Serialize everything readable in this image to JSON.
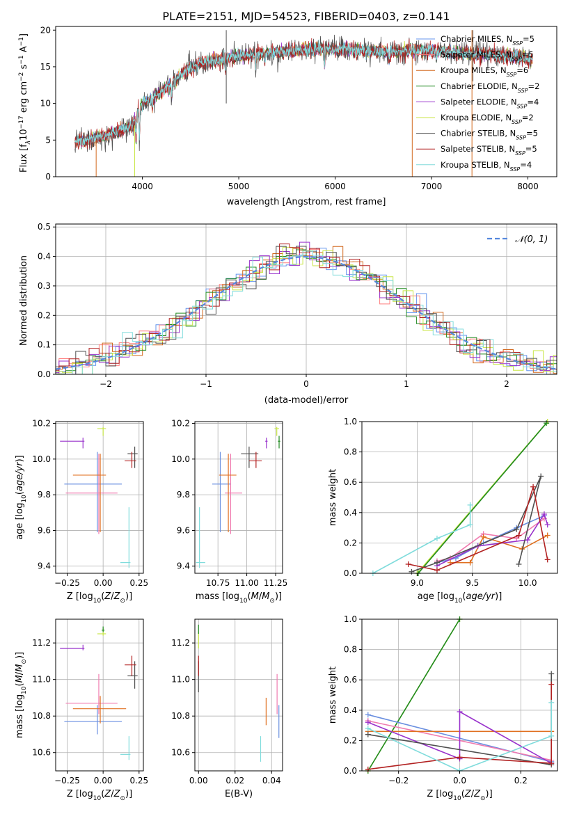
{
  "colors": {
    "chabrier_miles": "#6495ed",
    "salpeter_miles": "#ff7f7f",
    "kroupa_miles": "#d2691e",
    "chabrier_elodie": "#228b22",
    "salpeter_elodie": "#9932cc",
    "kroupa_elodie": "#c8e646",
    "chabrier_stelib": "#505050",
    "salpeter_stelib": "#b22222",
    "kroupa_stelib": "#80dcdc",
    "ms_chabrier_miles": "#6a8fe0",
    "ms_salpeter_miles": "#f07bb0",
    "ms_kroupa_miles": "#e07020",
    "grid": "#b0b0b0",
    "norm": "#5588dd"
  },
  "chart_data": [
    {
      "type": "line",
      "title": "PLATE=2151, MJD=54523, FIBERID=0403, z=0.141",
      "xlabel": "wavelength [Angstrom, rest frame]",
      "ylabel_parts": [
        "Flux [f",
        "λ",
        "10",
        "−17",
        " erg cm",
        "−2",
        " s",
        "−1",
        " A",
        "−1",
        "]"
      ],
      "xlim": [
        3100,
        8300
      ],
      "ylim": [
        0,
        20.5
      ],
      "xticks": [
        "4000",
        "5000",
        "6000",
        "7000",
        "8000"
      ],
      "yticks": [
        "0",
        "5",
        "10",
        "15",
        "20"
      ],
      "legend_position": "top-right",
      "continuum_knots": [
        [
          3300,
          4.8
        ],
        [
          3500,
          5.2
        ],
        [
          3700,
          6.0
        ],
        [
          3900,
          7.0
        ],
        [
          4000,
          10.0
        ],
        [
          4200,
          11.5
        ],
        [
          4400,
          14.0
        ],
        [
          4600,
          15.5
        ],
        [
          4800,
          16.0
        ],
        [
          5000,
          16.5
        ],
        [
          5400,
          17.0
        ],
        [
          5800,
          17.5
        ],
        [
          6200,
          17.3
        ],
        [
          6600,
          17.0
        ],
        [
          7000,
          17.2
        ],
        [
          7400,
          16.8
        ],
        [
          7800,
          16.5
        ],
        [
          8050,
          16.0
        ]
      ],
      "absorption_features": [
        [
          3934,
          3.0
        ],
        [
          3969,
          3.5
        ],
        [
          4102,
          1.5
        ],
        [
          4304,
          2.0
        ],
        [
          4340,
          1.5
        ],
        [
          4861,
          1.2
        ],
        [
          5175,
          2.0
        ],
        [
          5270,
          1.0
        ],
        [
          5890,
          2.5
        ],
        [
          6563,
          1.0
        ],
        [
          7050,
          1.0
        ]
      ],
      "spike_lines": [
        {
          "series": "kroupa_miles",
          "x": 3520,
          "y0": 0,
          "y1": 5
        },
        {
          "series": "kroupa_elodie",
          "x": 3920,
          "y0": 0,
          "y1": 7
        },
        {
          "series": "chabrier_stelib",
          "x": 4870,
          "y0": 10,
          "y1": 20
        },
        {
          "series": "kroupa_miles",
          "x": 6800,
          "y0": 0,
          "y1": 17
        },
        {
          "series": "kroupa_miles",
          "x": 7420,
          "y0": 0,
          "y1": 20
        },
        {
          "series": "chabrier_stelib",
          "x": 7430,
          "y0": 13,
          "y1": 20
        }
      ],
      "series": [
        {
          "key": "chabrier_miles",
          "label": "Chabrier MILES, N",
          "sub": "SSP",
          "value": "=5"
        },
        {
          "key": "salpeter_miles",
          "label": "Salpeter MILES, N",
          "sub": "SSP",
          "value": "=5"
        },
        {
          "key": "kroupa_miles",
          "label": "Kroupa MILES, N",
          "sub": "SSP",
          "value": "=6"
        },
        {
          "key": "chabrier_elodie",
          "label": "Chabrier ELODIE, N",
          "sub": "SSP",
          "value": "=2"
        },
        {
          "key": "salpeter_elodie",
          "label": "Salpeter ELODIE, N",
          "sub": "SSP",
          "value": "=4"
        },
        {
          "key": "kroupa_elodie",
          "label": "Kroupa ELODIE, N",
          "sub": "SSP",
          "value": "=2"
        },
        {
          "key": "chabrier_stelib",
          "label": "Chabrier STELIB, N",
          "sub": "SSP",
          "value": "=5"
        },
        {
          "key": "salpeter_stelib",
          "label": "Salpeter STELIB, N",
          "sub": "SSP",
          "value": "=5"
        },
        {
          "key": "kroupa_stelib",
          "label": "Kroupa STELIB, N",
          "sub": "SSP",
          "value": "=4"
        }
      ]
    },
    {
      "type": "line",
      "xlabel": "(data-model)/error",
      "ylabel": "Normed distribution",
      "xlim": [
        -2.5,
        2.5
      ],
      "ylim": [
        0,
        0.51
      ],
      "xticks": [
        "−2",
        "−1",
        "0",
        "1",
        "2"
      ],
      "xtick_values": [
        -2,
        -1,
        0,
        1,
        2
      ],
      "yticks": [
        "0.0",
        "0.1",
        "0.2",
        "0.3",
        "0.4",
        "0.5"
      ],
      "grid": true,
      "legend_position": "top-right",
      "legend_label": "𝒩(0, 1)",
      "bin_width": 0.1,
      "hist_series": [
        "chabrier_miles",
        "salpeter_miles",
        "kroupa_miles",
        "chabrier_elodie",
        "salpeter_elodie",
        "kroupa_elodie",
        "chabrier_stelib",
        "salpeter_stelib",
        "kroupa_stelib"
      ]
    },
    {
      "type": "scatter",
      "xlabel": "Z [log10(Z/Z⊙)]",
      "ylabel": "age [log10(age/yr)]",
      "xlim": [
        -0.33,
        0.28
      ],
      "ylim": [
        9.36,
        10.21
      ],
      "xticks": [
        "−0.25",
        "0.00",
        "0.25"
      ],
      "xtick_values": [
        -0.25,
        0,
        0.25
      ],
      "yticks": [
        "9.4",
        "9.6",
        "9.8",
        "10.0",
        "10.2"
      ],
      "ytick_values": [
        9.4,
        9.6,
        9.8,
        10.0,
        10.2
      ],
      "grid": true,
      "points": [
        {
          "c": "ms_chabrier_miles",
          "x": -0.04,
          "y": 9.86,
          "x0": -0.27,
          "x1": 0.13,
          "y0": 9.59,
          "y1": 10.04
        },
        {
          "c": "ms_salpeter_miles",
          "x": -0.03,
          "y": 9.81,
          "x0": -0.26,
          "x1": 0.1,
          "y0": 9.58,
          "y1": 10.03
        },
        {
          "c": "ms_kroupa_miles",
          "x": -0.02,
          "y": 9.91,
          "x0": -0.21,
          "x1": 0.02,
          "y0": 9.59,
          "y1": 10.03
        },
        {
          "c": "salpeter_elodie",
          "x": -0.14,
          "y": 10.1,
          "x0": -0.3,
          "x1": -0.13,
          "y0": 10.06,
          "y1": 10.12
        },
        {
          "c": "kroupa_elodie",
          "x": 0.0,
          "y": 10.17,
          "x0": -0.04,
          "x1": 0.02,
          "y0": 10.13,
          "y1": 10.18
        },
        {
          "c": "chabrier_stelib",
          "x": 0.22,
          "y": 10.03,
          "x0": 0.17,
          "x1": 0.24,
          "y0": 9.95,
          "y1": 10.07
        },
        {
          "c": "salpeter_stelib",
          "x": 0.2,
          "y": 9.99,
          "x0": 0.15,
          "x1": 0.23,
          "y0": 9.95,
          "y1": 10.04
        },
        {
          "c": "kroupa_stelib",
          "x": 0.18,
          "y": 9.42,
          "x0": 0.12,
          "x1": 0.19,
          "y0": 9.39,
          "y1": 9.73
        }
      ]
    },
    {
      "type": "scatter",
      "xlabel": "mass [log10(M/M⊙)]",
      "xlim": [
        10.55,
        11.31
      ],
      "ylim": [
        9.36,
        10.21
      ],
      "xticks": [
        "10.75",
        "11.00",
        "11.25"
      ],
      "xtick_values": [
        10.75,
        11.0,
        11.25
      ],
      "yticks": [
        "9.4",
        "9.6",
        "9.8",
        "10.0",
        "10.2"
      ],
      "ytick_values": [
        9.4,
        9.6,
        9.8,
        10.0,
        10.2
      ],
      "grid": true,
      "points": [
        {
          "c": "ms_chabrier_miles",
          "x": 10.77,
          "y": 9.86,
          "x0": 10.7,
          "x1": 10.86,
          "y0": 9.59,
          "y1": 10.04
        },
        {
          "c": "ms_salpeter_miles",
          "x": 10.86,
          "y": 9.81,
          "x0": 10.81,
          "x1": 10.96,
          "y0": 9.58,
          "y1": 10.03
        },
        {
          "c": "ms_kroupa_miles",
          "x": 10.84,
          "y": 9.91,
          "x0": 10.76,
          "x1": 10.91,
          "y0": 9.59,
          "y1": 10.03
        },
        {
          "c": "salpeter_elodie",
          "x": 11.17,
          "y": 10.1,
          "x0": 11.16,
          "x1": 11.18,
          "y0": 10.06,
          "y1": 10.12
        },
        {
          "c": "kroupa_elodie",
          "x": 11.26,
          "y": 10.17,
          "x0": 11.24,
          "x1": 11.28,
          "y0": 10.13,
          "y1": 10.18
        },
        {
          "c": "chabrier_stelib",
          "x": 11.02,
          "y": 10.03,
          "x0": 10.95,
          "x1": 11.1,
          "y0": 9.95,
          "y1": 10.07
        },
        {
          "c": "salpeter_stelib",
          "x": 11.08,
          "y": 9.99,
          "x0": 11.02,
          "x1": 11.13,
          "y0": 9.95,
          "y1": 10.04
        },
        {
          "c": "chabrier_elodie",
          "x": 11.28,
          "y": 10.1,
          "x0": 11.27,
          "x1": 11.29,
          "y0": 10.06,
          "y1": 10.13
        },
        {
          "c": "kroupa_stelib",
          "x": 10.59,
          "y": 9.42,
          "x0": 10.56,
          "x1": 10.64,
          "y0": 9.39,
          "y1": 9.73
        }
      ]
    },
    {
      "type": "line",
      "xlabel": "age [log10(age/yr)]",
      "ylabel": "mass weight",
      "xlim": [
        8.5,
        10.27
      ],
      "ylim": [
        0,
        1.0
      ],
      "xticks": [
        "9.0",
        "9.5",
        "10.0"
      ],
      "xtick_values": [
        9.0,
        9.5,
        10.0
      ],
      "yticks": [
        "0.0",
        "0.2",
        "0.4",
        "0.6",
        "0.8",
        "1.0"
      ],
      "ytick_values": [
        0,
        0.2,
        0.4,
        0.6,
        0.8,
        1.0
      ],
      "grid": true,
      "lines": [
        {
          "c": "kroupa_elodie",
          "x": [
            9.0,
            10.18
          ],
          "y": [
            0.0,
            1.0
          ]
        },
        {
          "c": "chabrier_elodie",
          "x": [
            9.01,
            10.17
          ],
          "y": [
            0.0,
            0.99
          ]
        },
        {
          "c": "kroupa_stelib",
          "x": [
            8.6,
            9.18,
            9.48,
            9.48
          ],
          "y": [
            0.0,
            0.23,
            0.32,
            0.45
          ]
        },
        {
          "c": "ms_chabrier_miles",
          "x": [
            9.18,
            9.35,
            9.6,
            9.9,
            10.15
          ],
          "y": [
            0.07,
            0.1,
            0.2,
            0.3,
            0.38
          ]
        },
        {
          "c": "ms_salpeter_miles",
          "x": [
            9.18,
            9.3,
            9.6,
            9.9,
            10.15
          ],
          "y": [
            0.08,
            0.1,
            0.26,
            0.23,
            0.36
          ]
        },
        {
          "c": "ms_kroupa_miles",
          "x": [
            9.3,
            9.48,
            9.6,
            9.95,
            10.18
          ],
          "y": [
            0.07,
            0.07,
            0.24,
            0.16,
            0.25
          ]
        },
        {
          "c": "salpeter_elodie",
          "x": [
            9.18,
            9.55,
            10.0,
            10.15,
            10.18
          ],
          "y": [
            0.05,
            0.18,
            0.22,
            0.39,
            0.32
          ]
        },
        {
          "c": "chabrier_stelib",
          "x": [
            8.95,
            9.18,
            9.9,
            10.12,
            9.92
          ],
          "y": [
            0.01,
            0.07,
            0.29,
            0.64,
            0.06
          ]
        },
        {
          "c": "salpeter_stelib",
          "x": [
            8.92,
            9.18,
            9.92,
            10.05,
            10.18
          ],
          "y": [
            0.06,
            0.02,
            0.25,
            0.57,
            0.09
          ]
        }
      ]
    },
    {
      "type": "scatter",
      "xlabel": "Z [log10(Z/Z⊙)]",
      "ylabel": "mass [log10(M/M⊙)]",
      "xlim": [
        -0.33,
        0.28
      ],
      "ylim": [
        10.5,
        11.33
      ],
      "xticks": [
        "−0.25",
        "0.00",
        "0.25"
      ],
      "xtick_values": [
        -0.25,
        0,
        0.25
      ],
      "yticks": [
        "10.6",
        "10.8",
        "11.0",
        "11.2"
      ],
      "ytick_values": [
        10.6,
        10.8,
        11.0,
        11.2
      ],
      "grid": true,
      "points": [
        {
          "c": "ms_chabrier_miles",
          "x": -0.04,
          "y": 10.77,
          "x0": -0.27,
          "x1": 0.13,
          "y0": 10.7,
          "y1": 10.86
        },
        {
          "c": "ms_salpeter_miles",
          "x": -0.03,
          "y": 10.87,
          "x0": -0.26,
          "x1": 0.1,
          "y0": 10.81,
          "y1": 11.03
        },
        {
          "c": "ms_kroupa_miles",
          "x": -0.02,
          "y": 10.84,
          "x0": -0.21,
          "x1": 0.16,
          "y0": 10.76,
          "y1": 10.91
        },
        {
          "c": "salpeter_elodie",
          "x": -0.14,
          "y": 11.17,
          "x0": -0.3,
          "x1": -0.13,
          "y0": 11.16,
          "y1": 11.19
        },
        {
          "c": "kroupa_elodie",
          "x": 0.0,
          "y": 11.25,
          "x0": -0.04,
          "x1": 0.02,
          "y0": 11.24,
          "y1": 11.28
        },
        {
          "c": "chabrier_elodie",
          "x": 0.0,
          "y": 11.27,
          "x0": -0.01,
          "x1": 0.01,
          "y0": 11.26,
          "y1": 11.29
        },
        {
          "c": "chabrier_stelib",
          "x": 0.22,
          "y": 11.02,
          "x0": 0.17,
          "x1": 0.24,
          "y0": 10.95,
          "y1": 11.1
        },
        {
          "c": "salpeter_stelib",
          "x": 0.2,
          "y": 11.08,
          "x0": 0.15,
          "x1": 0.23,
          "y0": 11.02,
          "y1": 11.13
        },
        {
          "c": "kroupa_stelib",
          "x": 0.18,
          "y": 10.59,
          "x0": 0.12,
          "x1": 0.19,
          "y0": 10.56,
          "y1": 10.69
        }
      ]
    },
    {
      "type": "scatter",
      "xlabel": "E(B-V)",
      "xlim": [
        -0.002,
        0.046
      ],
      "ylim": [
        10.5,
        11.33
      ],
      "xticks": [
        "0.00",
        "0.02",
        "0.04"
      ],
      "xtick_values": [
        0,
        0.02,
        0.04
      ],
      "yticks": [
        "10.6",
        "10.8",
        "11.0",
        "11.2"
      ],
      "ytick_values": [
        10.6,
        10.8,
        11.0,
        11.2
      ],
      "grid": true,
      "points": [
        {
          "c": "chabrier_stelib",
          "x": 0.0,
          "y": 11.02,
          "x0": 0.0,
          "x1": 0.0,
          "y0": 10.93,
          "y1": 11.1
        },
        {
          "c": "salpeter_stelib",
          "x": 0.0,
          "y": 11.08,
          "x0": 0.0,
          "x1": 0.0,
          "y0": 11.02,
          "y1": 11.13
        },
        {
          "c": "kroupa_elodie",
          "x": 0.0,
          "y": 11.22,
          "x0": 0.0,
          "x1": 0.0,
          "y0": 11.17,
          "y1": 11.26
        },
        {
          "c": "chabrier_elodie",
          "x": 0.0,
          "y": 11.27,
          "x0": 0.0,
          "x1": 0.0,
          "y0": 11.25,
          "y1": 11.3
        },
        {
          "c": "kroupa_stelib",
          "x": 0.034,
          "y": 10.62,
          "x0": 0.034,
          "x1": 0.034,
          "y0": 10.55,
          "y1": 10.69
        },
        {
          "c": "ms_kroupa_miles",
          "x": 0.037,
          "y": 10.84,
          "x0": 0.037,
          "x1": 0.037,
          "y0": 10.75,
          "y1": 10.9
        },
        {
          "c": "ms_salpeter_miles",
          "x": 0.043,
          "y": 10.87,
          "x0": 0.043,
          "x1": 0.043,
          "y0": 10.81,
          "y1": 11.03
        },
        {
          "c": "ms_chabrier_miles",
          "x": 0.044,
          "y": 10.77,
          "x0": 0.044,
          "x1": 0.044,
          "y0": 10.68,
          "y1": 10.86
        }
      ]
    },
    {
      "type": "line",
      "xlabel": "Z [log10(Z/Z⊙)]",
      "ylabel": "mass weight",
      "xlim": [
        -0.32,
        0.32
      ],
      "ylim": [
        0,
        1.0
      ],
      "xticks": [
        "−0.2",
        "0.0",
        "0.2"
      ],
      "xtick_values": [
        -0.2,
        0,
        0.2
      ],
      "yticks": [
        "0.0",
        "0.2",
        "0.4",
        "0.6",
        "0.8",
        "1.0"
      ],
      "ytick_values": [
        0,
        0.2,
        0.4,
        0.6,
        0.8,
        1.0
      ],
      "grid": true,
      "lines": [
        {
          "c": "kroupa_elodie",
          "x": [
            -0.3,
            0.0
          ],
          "y": [
            0.0,
            1.0
          ]
        },
        {
          "c": "chabrier_elodie",
          "x": [
            -0.3,
            0.0
          ],
          "y": [
            0.0,
            1.0
          ]
        },
        {
          "c": "ms_chabrier_miles",
          "x": [
            -0.3,
            0.3
          ],
          "y": [
            0.37,
            0.06
          ]
        },
        {
          "c": "ms_salpeter_miles",
          "x": [
            -0.3,
            0.3
          ],
          "y": [
            0.33,
            0.07
          ]
        },
        {
          "c": "ms_kroupa_miles",
          "x": [
            -0.3,
            0.3
          ],
          "y": [
            0.26,
            0.26
          ]
        },
        {
          "c": "salpeter_elodie",
          "x": [
            -0.3,
            0.0,
            0.0,
            0.3
          ],
          "y": [
            0.32,
            0.08,
            0.39,
            0.05
          ]
        },
        {
          "c": "chabrier_stelib",
          "x": [
            -0.3,
            0.3,
            0.3
          ],
          "y": [
            0.24,
            0.04,
            0.64
          ]
        },
        {
          "c": "salpeter_stelib",
          "x": [
            -0.3,
            0.0,
            0.3,
            0.3
          ],
          "y": [
            0.01,
            0.09,
            0.05,
            0.57
          ]
        },
        {
          "c": "kroupa_stelib",
          "x": [
            -0.3,
            0.0,
            0.3,
            0.3
          ],
          "y": [
            0.28,
            0.0,
            0.23,
            0.45
          ]
        }
      ]
    }
  ]
}
